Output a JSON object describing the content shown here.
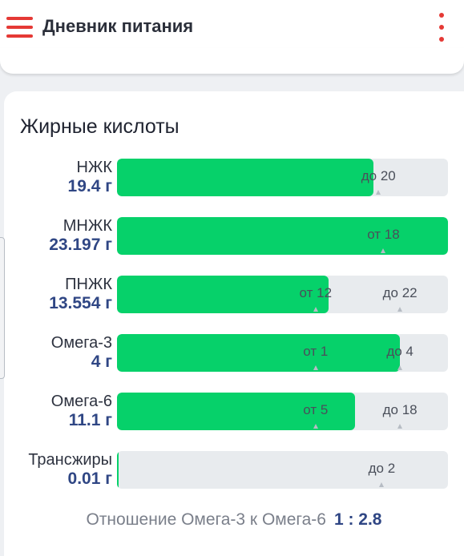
{
  "app_bar": {
    "title": "Дневник питания"
  },
  "section": {
    "title": "Жирные кислоты",
    "rows": [
      {
        "name": "НЖК",
        "amount": "19.4 г",
        "fill": 0.775,
        "markers": [
          {
            "label": "до 20",
            "pos": 0.79
          }
        ]
      },
      {
        "name": "МНЖК",
        "amount": "23.197 г",
        "fill": 1.0,
        "markers": [
          {
            "label": "от 18",
            "pos": 0.805
          }
        ]
      },
      {
        "name": "ПНЖК",
        "amount": "13.554 г",
        "fill": 0.64,
        "markers": [
          {
            "label": "от 12",
            "pos": 0.6
          },
          {
            "label": "до 22",
            "pos": 0.855
          }
        ]
      },
      {
        "name": "Омега-3",
        "amount": "4 г",
        "fill": 0.855,
        "markers": [
          {
            "label": "от 1",
            "pos": 0.6
          },
          {
            "label": "до 4",
            "pos": 0.855
          }
        ]
      },
      {
        "name": "Омега-6",
        "amount": "11.1 г",
        "fill": 0.72,
        "markers": [
          {
            "label": "от 5",
            "pos": 0.6
          },
          {
            "label": "до 18",
            "pos": 0.855
          }
        ]
      },
      {
        "name": "Трансжиры",
        "amount": "0.01 г",
        "fill": 0.005,
        "markers": [
          {
            "label": "до 2",
            "pos": 0.8
          }
        ]
      }
    ],
    "ratio_label": "Отношение Омега-3 к Омега-6",
    "ratio_value": "1 : 2.8"
  },
  "colors": {
    "accent": "#e53935",
    "fill": "#06d16a",
    "track": "#e8ebee",
    "amount": "#2f4684"
  },
  "icons": {
    "menu": "hamburger-icon",
    "more": "more-vertical-icon"
  }
}
